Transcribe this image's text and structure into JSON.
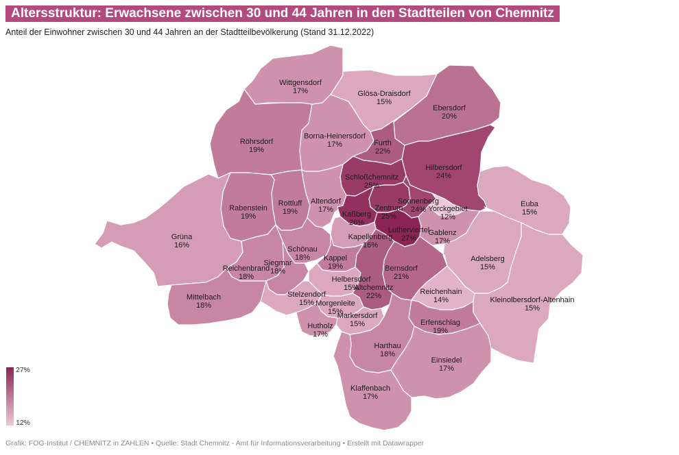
{
  "header": {
    "title": "Altersstruktur: Erwachsene zwischen 30 und 44 Jahren in den Stadtteilen von Chemnitz",
    "subtitle": "Anteil der Einwohner zwischen 30 und 44 Jahren an der Stadtteilbevölkerung (Stand 31.12.2022)"
  },
  "legend": {
    "max_label": "27%",
    "min_label": "12%"
  },
  "footer": "Grafik: FOG-Institut / CHEMNITZ in ZAHLEN • Quelle: Stadt Chemnitz - Amt für Informationsverarbeitung • Erstellt mit Datawrapper",
  "colors": {
    "accent": "#b34a7d",
    "low": "#efc9d8",
    "high": "#8c2556",
    "border": "#ffffff"
  },
  "scale": {
    "min": 12,
    "max": 27
  },
  "districts": [
    {
      "name": "Wittgensdorf",
      "value": 17,
      "label": "17%"
    },
    {
      "name": "Glösa-Draisdorf",
      "value": 15,
      "label": "15%"
    },
    {
      "name": "Ebersdorf",
      "value": 20,
      "label": "20%"
    },
    {
      "name": "Röhrsdorf",
      "value": 19,
      "label": "19%"
    },
    {
      "name": "Borna-Heinersdorf",
      "value": 17,
      "label": "17%"
    },
    {
      "name": "Furth",
      "value": 22,
      "label": "22%"
    },
    {
      "name": "Hilbersdorf",
      "value": 24,
      "label": "24%"
    },
    {
      "name": "Schloßchemnitz",
      "value": 25,
      "label": "25%"
    },
    {
      "name": "Euba",
      "value": 15,
      "label": "15%"
    },
    {
      "name": "Rabenstein",
      "value": 19,
      "label": "19%"
    },
    {
      "name": "Rottluff",
      "value": 19,
      "label": "19%"
    },
    {
      "name": "Altendorf",
      "value": 17,
      "label": "17%"
    },
    {
      "name": "Zentrum",
      "value": 25,
      "label": "25%"
    },
    {
      "name": "Sonnenberg",
      "value": 24,
      "label": "24%"
    },
    {
      "name": "Yorckgebiet",
      "value": 12,
      "label": "12%"
    },
    {
      "name": "Kaßberg",
      "value": 26,
      "label": "26%"
    },
    {
      "name": "Lutherviertel",
      "value": 27,
      "label": "27%"
    },
    {
      "name": "Gablenz",
      "value": 17,
      "label": "17%"
    },
    {
      "name": "Grüna",
      "value": 16,
      "label": "16%"
    },
    {
      "name": "Kapellenberg",
      "value": 16,
      "label": "16%"
    },
    {
      "name": "Schönau",
      "value": 18,
      "label": "18%"
    },
    {
      "name": "Adelsberg",
      "value": 15,
      "label": "15%"
    },
    {
      "name": "Kappel",
      "value": 19,
      "label": "19%"
    },
    {
      "name": "Reichenbrand",
      "value": 18,
      "label": "18%"
    },
    {
      "name": "Siegmar",
      "value": 18,
      "label": "18%"
    },
    {
      "name": "Bernsdorf",
      "value": 21,
      "label": "21%"
    },
    {
      "name": "Helbersdorf",
      "value": 15,
      "label": "15%"
    },
    {
      "name": "Altchemnitz",
      "value": 22,
      "label": "22%"
    },
    {
      "name": "Mittelbach",
      "value": 18,
      "label": "18%"
    },
    {
      "name": "Stelzendorf",
      "value": 15,
      "label": "15%"
    },
    {
      "name": "Reichenhain",
      "value": 14,
      "label": "14%"
    },
    {
      "name": "Kleinolbersdorf-Altenhain",
      "value": 15,
      "label": "15%"
    },
    {
      "name": "Morgenleite",
      "value": 15,
      "label": "15%"
    },
    {
      "name": "Markersdorf",
      "value": 15,
      "label": "15%"
    },
    {
      "name": "Erfenschlag",
      "value": 19,
      "label": "19%"
    },
    {
      "name": "Hutholz",
      "value": 17,
      "label": "17%"
    },
    {
      "name": "Harthau",
      "value": 18,
      "label": "18%"
    },
    {
      "name": "Einsiedel",
      "value": 17,
      "label": "17%"
    },
    {
      "name": "Klaffenbach",
      "value": 17,
      "label": "17%"
    }
  ]
}
